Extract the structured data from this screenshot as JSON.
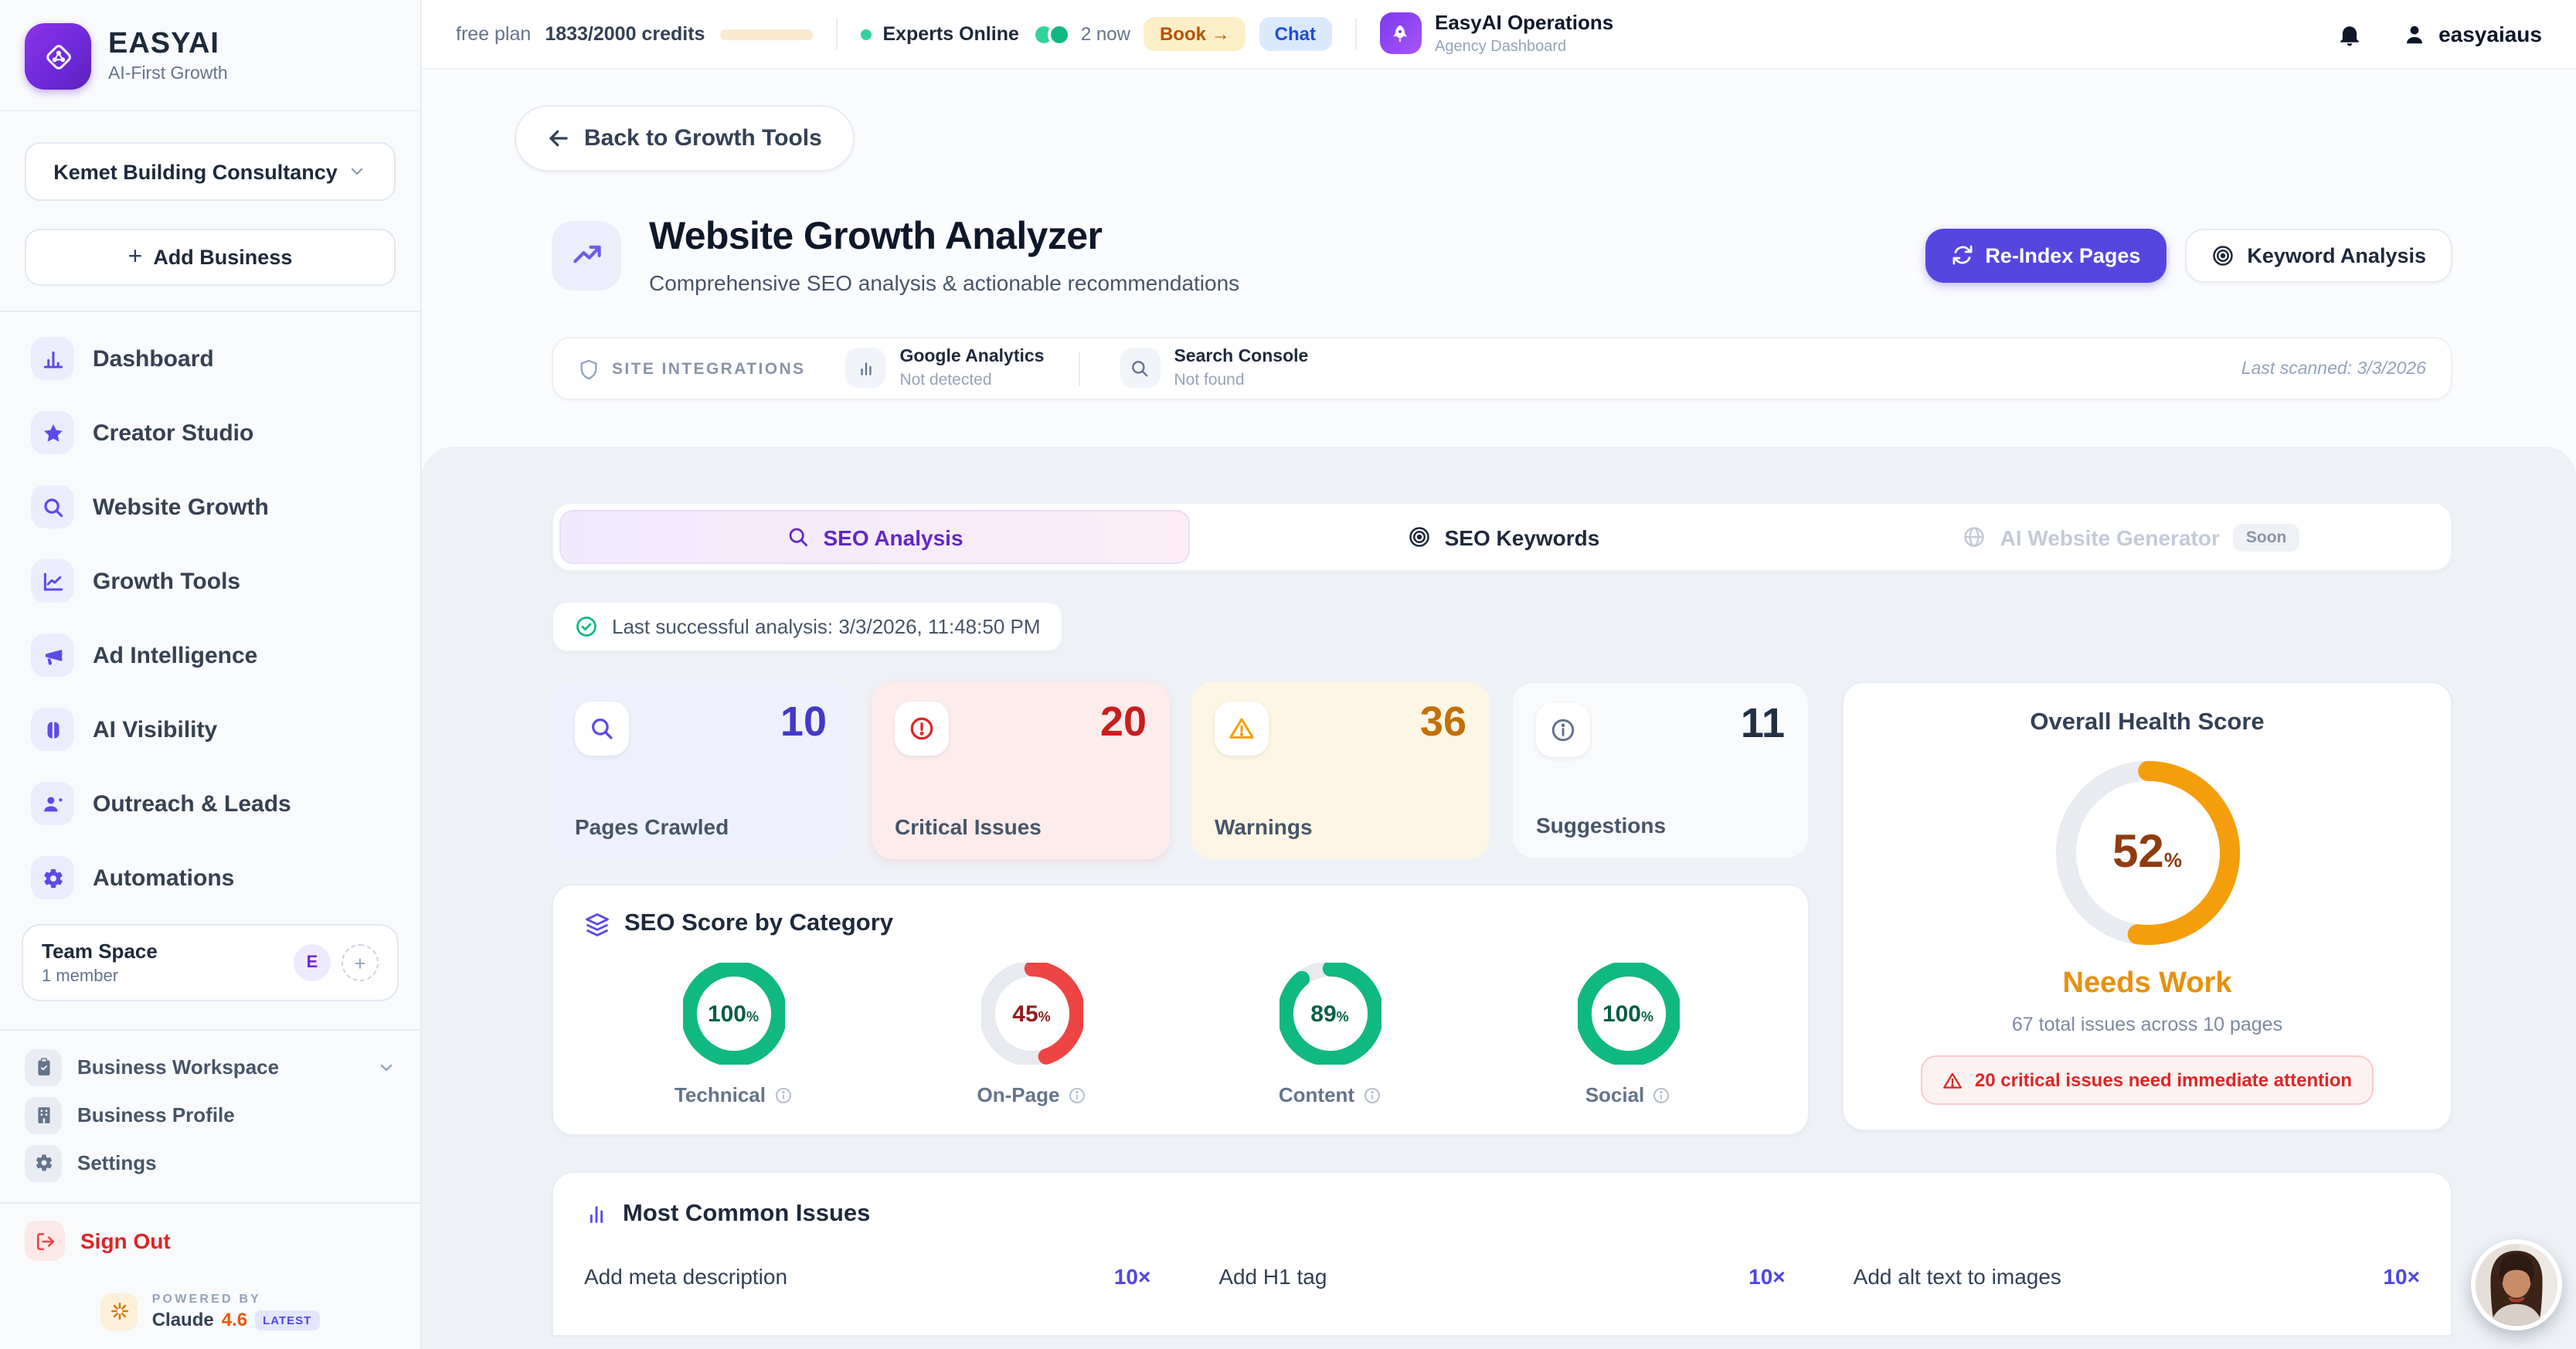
{
  "topbar": {
    "plan": "free plan",
    "credits": "1833/2000 credits",
    "credits_pct": 92,
    "experts_label": "Experts Online",
    "experts_now": "2 now",
    "book_label": "Book →",
    "chat_label": "Chat",
    "org_name": "EasyAI Operations",
    "org_sub": "Agency Dashboard",
    "username": "easyaiaus"
  },
  "sidebar": {
    "brand_name": "EASYAI",
    "brand_tagline": "AI-First Growth",
    "business_selector": "Kemet Building Consultancy",
    "add_business": "Add Business",
    "nav": [
      {
        "label": "Dashboard"
      },
      {
        "label": "Creator Studio"
      },
      {
        "label": "Website Growth"
      },
      {
        "label": "Growth Tools"
      },
      {
        "label": "Ad Intelligence"
      },
      {
        "label": "AI Visibility"
      },
      {
        "label": "Outreach & Leads"
      },
      {
        "label": "Automations"
      }
    ],
    "team_title": "Team Space",
    "team_members": "1 member",
    "team_avatar": "E",
    "workspace": [
      {
        "label": "Business Workspace"
      },
      {
        "label": "Business Profile"
      },
      {
        "label": "Settings"
      }
    ],
    "sign_out": "Sign Out",
    "powered_by": "POWERED BY",
    "claude_name": "Claude",
    "claude_version": "4.6",
    "latest_badge": "LATEST"
  },
  "header": {
    "back_label": "Back to Growth Tools",
    "title": "Website Growth Analyzer",
    "subtitle": "Comprehensive SEO analysis & actionable recommendations",
    "reindex_label": "Re-Index Pages",
    "keyword_label": "Keyword Analysis"
  },
  "integrations": {
    "label": "SITE INTEGRATIONS",
    "items": [
      {
        "name": "Google Analytics",
        "status": "Not detected"
      },
      {
        "name": "Search Console",
        "status": "Not found"
      }
    ],
    "last_scanned": "Last scanned: 3/3/2026"
  },
  "tabs": [
    {
      "label": "SEO Analysis"
    },
    {
      "label": "SEO Keywords"
    },
    {
      "label": "AI Website Generator",
      "badge": "Soon"
    }
  ],
  "analysis": {
    "last_run": "Last successful analysis: 3/3/2026, 11:48:50 PM"
  },
  "stats": [
    {
      "label": "Pages Crawled",
      "value": "10"
    },
    {
      "label": "Critical Issues",
      "value": "20"
    },
    {
      "label": "Warnings",
      "value": "36"
    },
    {
      "label": "Suggestions",
      "value": "11"
    }
  ],
  "health": {
    "title": "Overall Health Score",
    "percent": 52,
    "unit": "%",
    "color": "#f59e0b",
    "value_color": "#8f3c10",
    "status": "Needs Work",
    "summary": "67 total issues across 10 pages",
    "alert": "20 critical issues need immediate attention"
  },
  "categories": {
    "title": "SEO Score by Category",
    "items": [
      {
        "label": "Technical",
        "percent": 100,
        "unit": "%",
        "color": "#10b981",
        "value_color": "#065f46"
      },
      {
        "label": "On-Page",
        "percent": 45,
        "unit": "%",
        "color": "#ef4444",
        "value_color": "#8f1d1d"
      },
      {
        "label": "Content",
        "percent": 89,
        "unit": "%",
        "color": "#10b981",
        "value_color": "#065f46"
      },
      {
        "label": "Social",
        "percent": 100,
        "unit": "%",
        "color": "#10b981",
        "value_color": "#065f46"
      }
    ]
  },
  "issues": {
    "title": "Most Common Issues",
    "items": [
      {
        "label": "Add meta description",
        "count": "10×"
      },
      {
        "label": "Add H1 tag",
        "count": "10×"
      },
      {
        "label": "Add alt text to images",
        "count": "10×"
      }
    ]
  }
}
